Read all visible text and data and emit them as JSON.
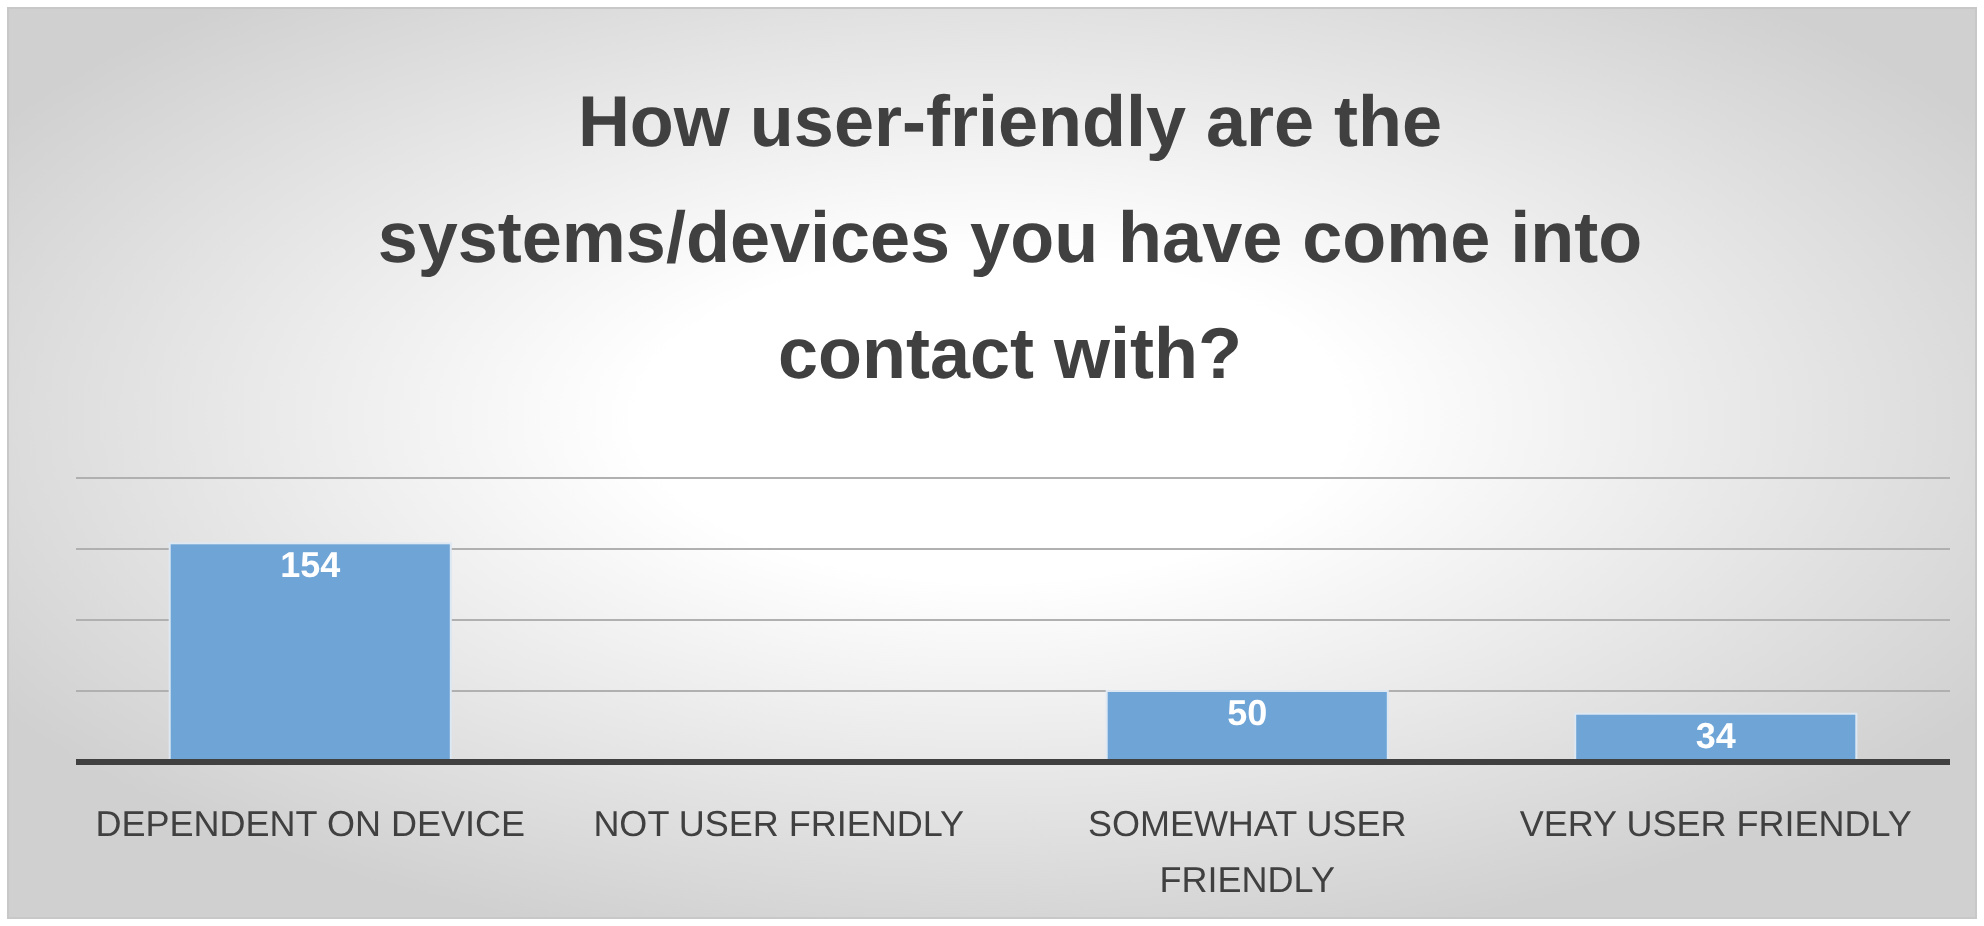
{
  "chart_data": {
    "type": "bar",
    "title": "How user-friendly are the systems/devices you have come into contact with?",
    "categories": [
      "DEPENDENT ON DEVICE",
      "NOT USER FRIENDLY",
      "SOMEWHAT USER FRIENDLY",
      "VERY USER FRIENDLY"
    ],
    "values": [
      154,
      1,
      50,
      34
    ],
    "value_labels": [
      "154",
      null,
      "50",
      "34"
    ],
    "color": "#6fa4d7",
    "ylim": [
      0,
      200
    ],
    "yticks": [
      {
        "value": 50,
        "label": null
      },
      {
        "value": 100,
        "label": null
      },
      {
        "value": 150,
        "label": null
      },
      {
        "value": 200,
        "label": null
      }
    ],
    "grid": "y",
    "tick_labels": "x"
  }
}
